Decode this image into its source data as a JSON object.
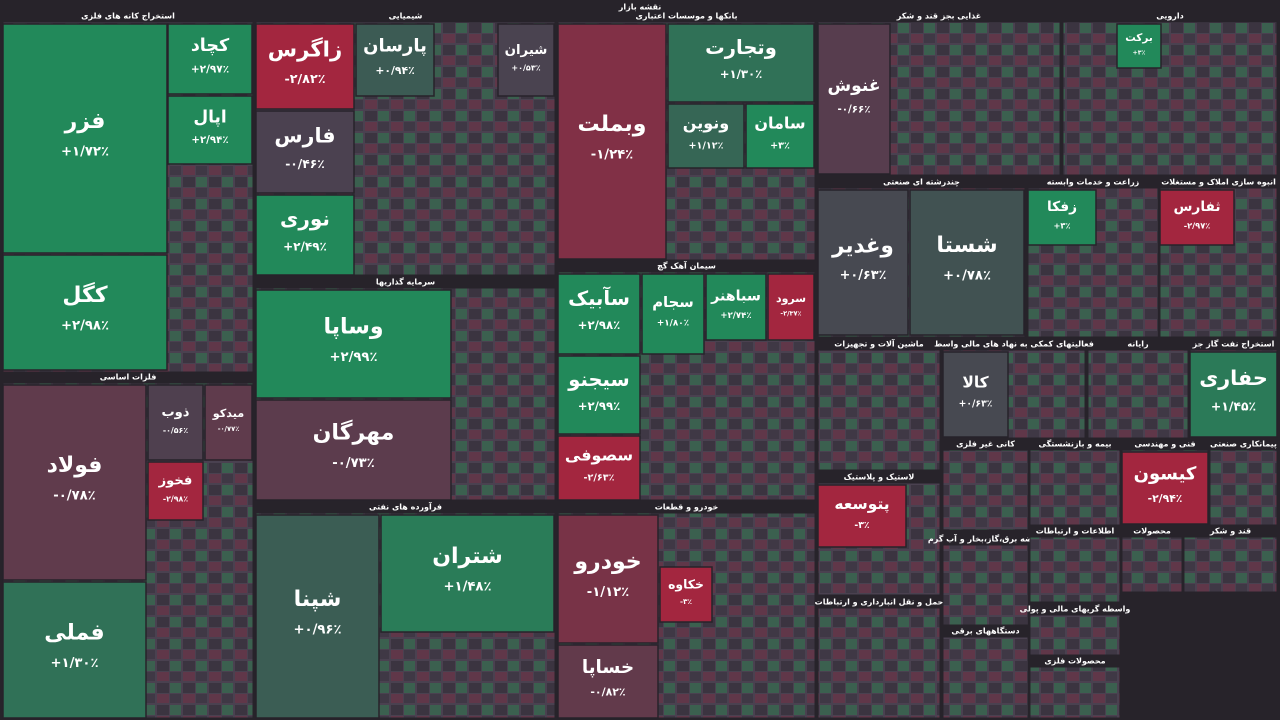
{
  "chart_data": {
    "type": "treemap",
    "title": "نقشه بازار",
    "sectors": [
      {
        "name": "استخراج کانه های فلزی",
        "tiles": [
          {
            "name": "فزر",
            "value": 1.72,
            "value_label": "+۱/۷۲٪"
          },
          {
            "name": "کگل",
            "value": 2.98,
            "value_label": "+۲/۹۸٪"
          },
          {
            "name": "کچاد",
            "value": 2.97,
            "value_label": "+۲/۹۷٪"
          },
          {
            "name": "اپال",
            "value": 2.94,
            "value_label": "+۲/۹۴٪"
          }
        ]
      },
      {
        "name": "فلزات اساسی",
        "tiles": [
          {
            "name": "فولاد",
            "value": -0.78,
            "value_label": "-۰/۷۸٪"
          },
          {
            "name": "فملی",
            "value": 1.3,
            "value_label": "+۱/۳۰٪"
          },
          {
            "name": "ذوب",
            "value": -0.56,
            "value_label": "-۰/۵۶٪"
          },
          {
            "name": "میدکو",
            "value": -0.77,
            "value_label": "-۰/۷۷٪"
          },
          {
            "name": "فخوز",
            "value": -2.98,
            "value_label": "-۲/۹۸٪"
          }
        ]
      },
      {
        "name": "شیمیایی",
        "tiles": [
          {
            "name": "زاگرس",
            "value": -2.82,
            "value_label": "-۲/۸۲٪"
          },
          {
            "name": "فارس",
            "value": -0.46,
            "value_label": "-۰/۴۶٪"
          },
          {
            "name": "نوری",
            "value": 2.49,
            "value_label": "+۲/۴۹٪"
          },
          {
            "name": "پارسان",
            "value": 0.94,
            "value_label": "+۰/۹۴٪"
          },
          {
            "name": "شیران",
            "value": 0.53,
            "value_label": "+۰/۵۳٪"
          }
        ]
      },
      {
        "name": "سرمایه گذاریها",
        "tiles": [
          {
            "name": "وساپا",
            "value": 2.99,
            "value_label": "+۲/۹۹٪"
          },
          {
            "name": "مهرگان",
            "value": -0.73,
            "value_label": "-۰/۷۳٪"
          }
        ]
      },
      {
        "name": "فرآورده های نفتی",
        "tiles": [
          {
            "name": "شپنا",
            "value": 0.96,
            "value_label": "+۰/۹۶٪"
          },
          {
            "name": "شتران",
            "value": 1.48,
            "value_label": "+۱/۴۸٪"
          }
        ]
      },
      {
        "name": "بانکها و موسسات اعتباری",
        "tiles": [
          {
            "name": "وبملت",
            "value": -1.24,
            "value_label": "-۱/۲۴٪"
          },
          {
            "name": "وتجارت",
            "value": 1.3,
            "value_label": "+۱/۳۰٪"
          },
          {
            "name": "ونوین",
            "value": 1.12,
            "value_label": "+۱/۱۲٪"
          },
          {
            "name": "سامان",
            "value": 3,
            "value_label": "+۳٪"
          }
        ]
      },
      {
        "name": "سیمان آهک گچ",
        "tiles": [
          {
            "name": "سآبیک",
            "value": 2.98,
            "value_label": "+۲/۹۸٪"
          },
          {
            "name": "سجام",
            "value": 1.8,
            "value_label": "+۱/۸۰٪"
          },
          {
            "name": "سباهنر",
            "value": 2.74,
            "value_label": "+۲/۷۴٪"
          },
          {
            "name": "سرود",
            "value": -2.37,
            "value_label": "-۲/۳۷٪"
          },
          {
            "name": "سیجنو",
            "value": 2.99,
            "value_label": "+۲/۹۹٪"
          },
          {
            "name": "سصوفی",
            "value": -2.63,
            "value_label": "-۲/۶۳٪"
          }
        ]
      },
      {
        "name": "خودرو و قطعات",
        "tiles": [
          {
            "name": "خودرو",
            "value": -1.12,
            "value_label": "-۱/۱۲٪"
          },
          {
            "name": "خساپا",
            "value": -0.82,
            "value_label": "-۰/۸۲٪"
          },
          {
            "name": "خکاوه",
            "value": -3,
            "value_label": "-۳٪"
          }
        ]
      },
      {
        "name": "غذایی بجز قند و شکر",
        "tiles": [
          {
            "name": "غنوش",
            "value": -0.66,
            "value_label": "-۰/۶۶٪"
          }
        ]
      },
      {
        "name": "دارویی",
        "tiles": [
          {
            "name": "برکت",
            "value": 3,
            "value_label": "+۳٪"
          }
        ]
      },
      {
        "name": "چندرشته ای صنعتی",
        "tiles": [
          {
            "name": "شستا",
            "value": 0.78,
            "value_label": "+۰/۷۸٪"
          },
          {
            "name": "وغدیر",
            "value": 0.63,
            "value_label": "+۰/۶۳٪"
          }
        ]
      },
      {
        "name": "زراعت و خدمات وابسته",
        "tiles": [
          {
            "name": "زفکا",
            "value": 3,
            "value_label": "+۳٪"
          }
        ]
      },
      {
        "name": "انبوه سازی املاک و مستغلات",
        "tiles": [
          {
            "name": "ثفارس",
            "value": -2.97,
            "value_label": "-۲/۹۷٪"
          }
        ]
      },
      {
        "name": "ماشین آلات و تجهیزات",
        "tiles": []
      },
      {
        "name": "فعالیتهای کمکی به نهاد های مالی واسط",
        "tiles": [
          {
            "name": "کالا",
            "value": 0.63,
            "value_label": "+۰/۶۳٪"
          }
        ]
      },
      {
        "name": "رایانه",
        "tiles": []
      },
      {
        "name": "استخراج نفت گاز جز",
        "tiles": [
          {
            "name": "حفاری",
            "value": 1.45,
            "value_label": "+۱/۴۵٪"
          }
        ]
      },
      {
        "name": "لاستیک و پلاستیک",
        "tiles": [
          {
            "name": "پتوسعه",
            "value": -3,
            "value_label": "-۳٪"
          }
        ]
      },
      {
        "name": "حمل و نقل انبارداری و ارتباطات",
        "tiles": []
      },
      {
        "name": "کانی غیر فلزی",
        "tiles": []
      },
      {
        "name": "بیمه و بازنشستگی",
        "tiles": []
      },
      {
        "name": "فنی و مهندسی",
        "tiles": [
          {
            "name": "کیسون",
            "value": -2.94,
            "value_label": "-۲/۹۴٪"
          }
        ]
      },
      {
        "name": "پیمانکاری صنعتی",
        "tiles": []
      },
      {
        "name": "عرضه برق،گاز،بخار و آب گرم",
        "tiles": []
      },
      {
        "name": "دستگاههای برقی",
        "tiles": []
      },
      {
        "name": "اطلاعات و ارتباطات",
        "tiles": []
      },
      {
        "name": "محصولات",
        "tiles": []
      },
      {
        "name": "قند و شکر",
        "tiles": []
      },
      {
        "name": "واسطه گریهای مالی و پولی",
        "tiles": []
      },
      {
        "name": "محصولات فلزی",
        "tiles": []
      }
    ]
  }
}
